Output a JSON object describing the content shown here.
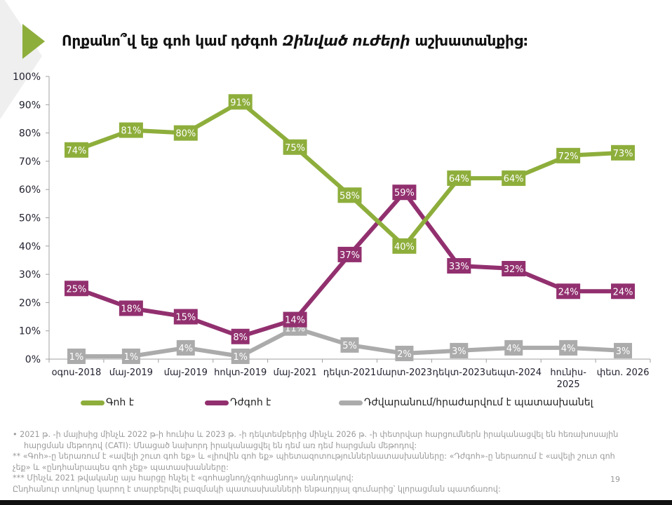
{
  "header": {
    "title_plain": "Որքանո՞վ եք գոհ կամ դժգոհ ",
    "title_italic": "Զինված ուժերի",
    "title_end": " աշխատանքից:"
  },
  "colors": {
    "satisfied": "#8eae3c",
    "dissatisfied": "#92306f",
    "difficult": "#ababab",
    "accent": "#8eae3c"
  },
  "chart_data": {
    "type": "line",
    "title": "Որքանո՞վ եք գոհ կամ դժգոհ Զինված ուժերի աշխատանքից:",
    "xlabel": "",
    "ylabel": "",
    "ylim": [
      0,
      100
    ],
    "yticks": [
      "0%",
      "10%",
      "20%",
      "30%",
      "40%",
      "50%",
      "60%",
      "70%",
      "80%",
      "90%",
      "100%"
    ],
    "categories": [
      "օգոս-2018",
      "մայ-2019",
      "մայ-2019",
      "հոկտ-2019",
      "մայ-2021",
      "դեկտ-2021",
      "մարտ-2023",
      "դեկտ-2023",
      "սեպտ-2024",
      "հունիս-2025",
      "փետ. 2026"
    ],
    "category_lines": [
      [
        "օգոս-2018"
      ],
      [
        "մայ-2019"
      ],
      [
        "մայ-2019"
      ],
      [
        "հոկտ-2019"
      ],
      [
        "մայ-2021"
      ],
      [
        "դեկտ-2021"
      ],
      [
        "մարտ-2023"
      ],
      [
        "դեկտ-2023"
      ],
      [
        "սեպտ-2024"
      ],
      [
        "հունիս-",
        "2025"
      ],
      [
        "փետ. 2026"
      ]
    ],
    "grid": false,
    "legend_position": "bottom",
    "series": [
      {
        "name": "Գոհ է",
        "key": "satisfied",
        "values": [
          74,
          81,
          80,
          91,
          75,
          58,
          40,
          64,
          64,
          72,
          73
        ]
      },
      {
        "name": "Դժգոհ է",
        "key": "dissatisfied",
        "values": [
          25,
          18,
          15,
          8,
          14,
          37,
          59,
          33,
          32,
          24,
          24
        ]
      },
      {
        "name": "Դժվարանում/հրաժարվում է պատասխանել",
        "key": "difficult",
        "values": [
          1,
          1,
          4,
          1,
          11,
          5,
          2,
          3,
          4,
          4,
          3
        ]
      }
    ]
  },
  "footnotes": [
    "•   2021 թ. -ի մայիսից մինչև 2022 թ-ի հունիս և 2023 թ. -ի դեկտեմբերից մինչև 2026 թ. -ի փետրվար հարցումներն իրականացվել են հեռախոսային",
    "հարցման մեթոդով (CATI): Մնացած նախորդ իրականացվել են դեմ առ դեմ հարցման մեթոդով:",
    "** «Գոհ»-ը ներառում է «ավելի շուտ գոհ եք» և «լիովին գոհ եք» պիետազոտություններնատասխանները: «Դժգոհ»-ը ներառում է «ավելի շուտ գոհ",
    "չեք» և «ընդհանրապես գոհ չեք» պատասխանները:",
    "*** Մինչև 2021 թվականը այս հարցը հնչել է «գոհացնող/չգոհացնող» սանդղակով:",
    "Ընդհանուր տոկոսը կարող է տարբերվել բազմակի պատասխանների ենթադրյալ գումարից՝ կլորացման պատճառով:"
  ],
  "page_number": "19"
}
